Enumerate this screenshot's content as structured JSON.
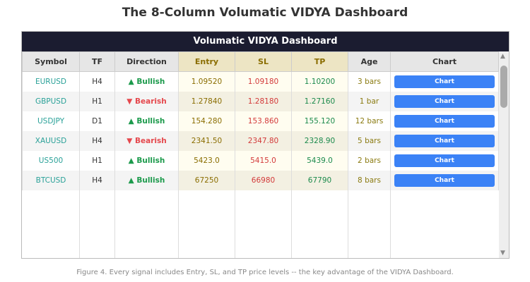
{
  "title": "The 8-Column Volumatic VIDYA Dashboard",
  "panel_title": "Volumatic VIDYA Dashboard",
  "columns": [
    "Symbol",
    "TF",
    "Direction",
    "Entry",
    "SL",
    "TP",
    "Age",
    "Chart"
  ],
  "rows": [
    {
      "symbol": "EURUSD",
      "tf": "H4",
      "dir": "▲ Bullish",
      "bull": true,
      "entry": "1.09520",
      "sl": "1.09180",
      "tp": "1.10200",
      "age": "3 bars",
      "chart": "Chart"
    },
    {
      "symbol": "GBPUSD",
      "tf": "H1",
      "dir": "▼ Bearish",
      "bull": false,
      "entry": "1.27840",
      "sl": "1.28180",
      "tp": "1.27160",
      "age": "1 bar",
      "chart": "Chart"
    },
    {
      "symbol": "USDJPY",
      "tf": "D1",
      "dir": "▲ Bullish",
      "bull": true,
      "entry": "154.280",
      "sl": "153.860",
      "tp": "155.120",
      "age": "12 bars",
      "chart": "Chart"
    },
    {
      "symbol": "XAUUSD",
      "tf": "H4",
      "dir": "▼ Bearish",
      "bull": false,
      "entry": "2341.50",
      "sl": "2347.80",
      "tp": "2328.90",
      "age": "5 bars",
      "chart": "Chart"
    },
    {
      "symbol": "US500",
      "tf": "H1",
      "dir": "▲ Bullish",
      "bull": true,
      "entry": "5423.0",
      "sl": "5415.0",
      "tp": "5439.0",
      "age": "2 bars",
      "chart": "Chart"
    },
    {
      "symbol": "BTCUSD",
      "tf": "H4",
      "dir": "▲ Bullish",
      "bull": true,
      "entry": "67250",
      "sl": "66980",
      "tp": "67790",
      "age": "8 bars",
      "chart": "Chart"
    }
  ],
  "caption": "Figure 4. Every signal includes Entry, SL, and TP price levels -- the key advantage of the VIDYA Dashboard."
}
